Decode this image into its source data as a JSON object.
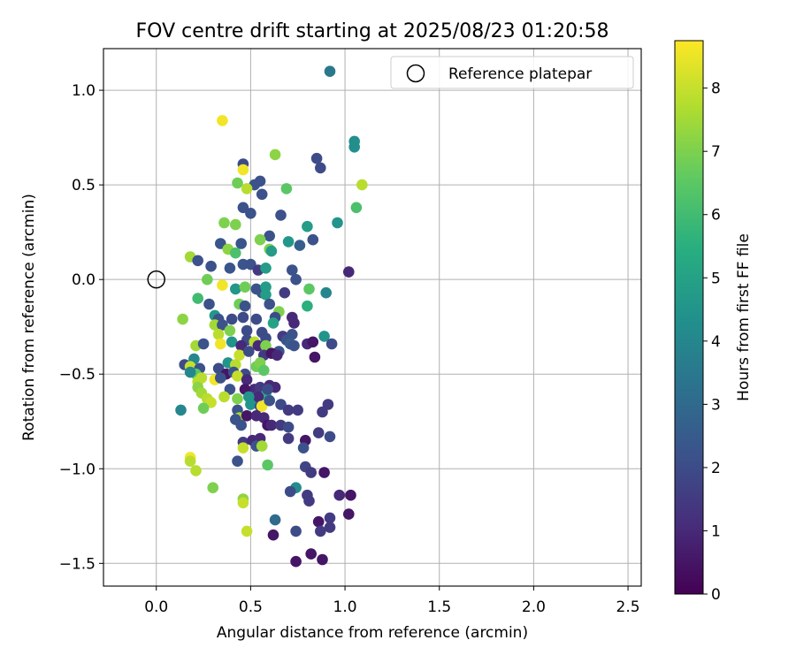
{
  "chart_data": {
    "type": "scatter",
    "title": "FOV centre drift starting at 2025/08/23 01:20:58",
    "xlabel": "Angular distance from reference (arcmin)",
    "ylabel": "Rotation from reference (arcmin)",
    "xlim": [
      -0.28,
      2.57
    ],
    "ylim": [
      -1.62,
      1.22
    ],
    "xticks": [
      0.0,
      0.5,
      1.0,
      1.5,
      2.0,
      2.5
    ],
    "xtick_labels": [
      "0.0",
      "0.5",
      "1.0",
      "1.5",
      "2.0",
      "2.5"
    ],
    "yticks": [
      -1.5,
      -1.0,
      -0.5,
      0.0,
      0.5,
      1.0
    ],
    "ytick_labels": [
      "−1.5",
      "−1.0",
      "−0.5",
      "0.0",
      "0.5",
      "1.0"
    ],
    "grid": true,
    "legend": {
      "placement": "top-right",
      "entries": [
        {
          "label": "Reference platepar",
          "marker": "open-circle"
        }
      ]
    },
    "reference_point": {
      "x": 0.0,
      "y": 0.0
    },
    "colorbar": {
      "label": "Hours from first FF file",
      "colormap": "viridis",
      "range": [
        0,
        8.75
      ],
      "ticks": [
        0,
        1,
        2,
        3,
        4,
        5,
        6,
        7,
        8
      ],
      "tick_labels": [
        "0",
        "1",
        "2",
        "3",
        "4",
        "5",
        "6",
        "7",
        "8"
      ]
    },
    "series": [
      {
        "points": [
          [
            0.92,
            1.1,
            3.5
          ],
          [
            0.35,
            0.84,
            8.6
          ],
          [
            0.46,
            0.61,
            2.0
          ],
          [
            0.85,
            0.64,
            2.0
          ],
          [
            0.87,
            0.59,
            2.0
          ],
          [
            0.63,
            0.66,
            7.2
          ],
          [
            1.05,
            0.73,
            4.3
          ],
          [
            1.05,
            0.7,
            4.3
          ],
          [
            0.46,
            0.58,
            8.6
          ],
          [
            0.55,
            0.52,
            2.2
          ],
          [
            0.52,
            0.5,
            2.2
          ],
          [
            0.43,
            0.51,
            6.8
          ],
          [
            0.48,
            0.48,
            7.8
          ],
          [
            0.69,
            0.48,
            6.5
          ],
          [
            1.09,
            0.5,
            7.8
          ],
          [
            0.56,
            0.45,
            2.2
          ],
          [
            1.06,
            0.38,
            6.2
          ],
          [
            0.46,
            0.38,
            2.2
          ],
          [
            0.5,
            0.35,
            2.2
          ],
          [
            0.66,
            0.34,
            2.2
          ],
          [
            0.36,
            0.3,
            7.0
          ],
          [
            0.42,
            0.29,
            7.0
          ],
          [
            0.8,
            0.28,
            4.8
          ],
          [
            0.96,
            0.3,
            4.5
          ],
          [
            0.6,
            0.23,
            2.2
          ],
          [
            0.55,
            0.21,
            7.0
          ],
          [
            0.45,
            0.19,
            2.3
          ],
          [
            0.34,
            0.19,
            2.3
          ],
          [
            0.7,
            0.2,
            4.6
          ],
          [
            0.76,
            0.18,
            2.6
          ],
          [
            0.83,
            0.21,
            2.2
          ],
          [
            0.6,
            0.16,
            7.0
          ],
          [
            0.61,
            0.15,
            4.8
          ],
          [
            0.38,
            0.16,
            7.2
          ],
          [
            0.42,
            0.14,
            6.2
          ],
          [
            0.18,
            0.12,
            7.5
          ],
          [
            0.22,
            0.1,
            2.2
          ],
          [
            0.29,
            0.07,
            2.2
          ],
          [
            0.39,
            0.06,
            2.3
          ],
          [
            0.46,
            0.08,
            2.3
          ],
          [
            0.5,
            0.08,
            2.2
          ],
          [
            0.54,
            0.05,
            1.5
          ],
          [
            0.58,
            0.06,
            4.8
          ],
          [
            0.72,
            0.05,
            2.2
          ],
          [
            0.74,
            0.0,
            2.2
          ],
          [
            1.02,
            0.04,
            1.0
          ],
          [
            0.27,
            0.0,
            6.8
          ],
          [
            0.35,
            -0.03,
            8.6
          ],
          [
            0.42,
            -0.05,
            4.6
          ],
          [
            0.47,
            -0.04,
            6.8
          ],
          [
            0.53,
            -0.05,
            2.2
          ],
          [
            0.56,
            -0.07,
            2.2
          ],
          [
            0.58,
            -0.04,
            4.8
          ],
          [
            0.58,
            -0.08,
            4.8
          ],
          [
            0.68,
            -0.07,
            1.5
          ],
          [
            0.81,
            -0.05,
            6.5
          ],
          [
            0.9,
            -0.07,
            4.0
          ],
          [
            0.22,
            -0.1,
            6.0
          ],
          [
            0.28,
            -0.13,
            2.2
          ],
          [
            0.44,
            -0.13,
            6.8
          ],
          [
            0.47,
            -0.14,
            2.2
          ],
          [
            0.6,
            -0.13,
            2.2
          ],
          [
            0.65,
            -0.17,
            7.0
          ],
          [
            0.8,
            -0.14,
            5.5
          ],
          [
            0.14,
            -0.21,
            7.2
          ],
          [
            0.31,
            -0.19,
            4.6
          ],
          [
            0.33,
            -0.21,
            2.2
          ],
          [
            0.4,
            -0.21,
            2.0
          ],
          [
            0.46,
            -0.2,
            2.0
          ],
          [
            0.53,
            -0.21,
            2.0
          ],
          [
            0.63,
            -0.2,
            2.0
          ],
          [
            0.62,
            -0.23,
            5.0
          ],
          [
            0.72,
            -0.2,
            1.0
          ],
          [
            0.31,
            -0.24,
            7.5
          ],
          [
            0.35,
            -0.24,
            2.2
          ],
          [
            0.39,
            -0.27,
            7.0
          ],
          [
            0.48,
            -0.27,
            2.0
          ],
          [
            0.56,
            -0.28,
            2.0
          ],
          [
            0.73,
            -0.23,
            1.0
          ],
          [
            0.33,
            -0.29,
            7.8
          ],
          [
            0.4,
            -0.33,
            4.5
          ],
          [
            0.48,
            -0.32,
            2.0
          ],
          [
            0.52,
            -0.33,
            7.8
          ],
          [
            0.58,
            -0.31,
            2.0
          ],
          [
            0.67,
            -0.3,
            1.5
          ],
          [
            0.69,
            -0.32,
            2.2
          ],
          [
            0.72,
            -0.29,
            2.2
          ],
          [
            0.89,
            -0.3,
            4.5
          ],
          [
            0.21,
            -0.35,
            7.5
          ],
          [
            0.25,
            -0.34,
            2.2
          ],
          [
            0.34,
            -0.34,
            8.6
          ],
          [
            0.45,
            -0.35,
            1.0
          ],
          [
            0.54,
            -0.35,
            1.0
          ],
          [
            0.58,
            -0.35,
            7.0
          ],
          [
            0.65,
            -0.38,
            2.2
          ],
          [
            0.71,
            -0.34,
            2.6
          ],
          [
            0.73,
            -0.35,
            2.2
          ],
          [
            0.8,
            -0.34,
            1.0
          ],
          [
            0.83,
            -0.33,
            0.5
          ],
          [
            0.93,
            -0.34,
            2.0
          ],
          [
            0.44,
            -0.4,
            8.0
          ],
          [
            0.49,
            -0.38,
            2.0
          ],
          [
            0.57,
            -0.4,
            1.5
          ],
          [
            0.61,
            -0.39,
            0.5
          ],
          [
            0.64,
            -0.4,
            1.0
          ],
          [
            0.84,
            -0.41,
            0.5
          ],
          [
            0.2,
            -0.42,
            4.0
          ],
          [
            0.15,
            -0.45,
            2.0
          ],
          [
            0.18,
            -0.46,
            8.0
          ],
          [
            0.23,
            -0.47,
            2.2
          ],
          [
            0.33,
            -0.47,
            2.0
          ],
          [
            0.38,
            -0.44,
            4.5
          ],
          [
            0.42,
            -0.45,
            7.8
          ],
          [
            0.53,
            -0.46,
            6.8
          ],
          [
            0.55,
            -0.44,
            7.0
          ],
          [
            0.37,
            -0.5,
            0.5
          ],
          [
            0.41,
            -0.49,
            2.2
          ],
          [
            0.47,
            -0.5,
            2.0
          ],
          [
            0.57,
            -0.48,
            6.5
          ],
          [
            0.21,
            -0.5,
            6.5
          ],
          [
            0.18,
            -0.49,
            4.0
          ],
          [
            0.24,
            -0.52,
            7.8
          ],
          [
            0.31,
            -0.53,
            8.6
          ],
          [
            0.34,
            -0.52,
            2.2
          ],
          [
            0.43,
            -0.51,
            8.0
          ],
          [
            0.48,
            -0.53,
            1.0
          ],
          [
            0.52,
            -0.58,
            1.0
          ],
          [
            0.55,
            -0.57,
            1.5
          ],
          [
            0.6,
            -0.56,
            1.0
          ],
          [
            0.63,
            -0.57,
            1.0
          ],
          [
            0.22,
            -0.54,
            7.8
          ],
          [
            0.22,
            -0.57,
            7.2
          ],
          [
            0.24,
            -0.6,
            7.5
          ],
          [
            0.27,
            -0.63,
            7.8
          ],
          [
            0.29,
            -0.65,
            8.0
          ],
          [
            0.39,
            -0.58,
            2.2
          ],
          [
            0.47,
            -0.58,
            0.5
          ],
          [
            0.53,
            -0.62,
            2.0
          ],
          [
            0.58,
            -0.61,
            5.5
          ],
          [
            0.59,
            -0.58,
            2.0
          ],
          [
            0.54,
            -0.62,
            1.0
          ],
          [
            0.49,
            -0.62,
            4.5
          ],
          [
            0.36,
            -0.62,
            7.8
          ],
          [
            0.43,
            -0.63,
            7.0
          ],
          [
            0.5,
            -0.66,
            4.5
          ],
          [
            0.55,
            -0.67,
            2.2
          ],
          [
            0.56,
            -0.67,
            8.6
          ],
          [
            0.6,
            -0.64,
            2.2
          ],
          [
            0.66,
            -0.66,
            2.0
          ],
          [
            0.7,
            -0.69,
            1.5
          ],
          [
            0.75,
            -0.69,
            1.5
          ],
          [
            0.88,
            -0.7,
            1.5
          ],
          [
            0.91,
            -0.66,
            1.5
          ],
          [
            0.13,
            -0.69,
            4.0
          ],
          [
            0.25,
            -0.68,
            6.8
          ],
          [
            0.43,
            -0.69,
            2.2
          ],
          [
            0.44,
            -0.73,
            7.5
          ],
          [
            0.48,
            -0.72,
            0.5
          ],
          [
            0.53,
            -0.72,
            1.0
          ],
          [
            0.57,
            -0.73,
            1.0
          ],
          [
            0.42,
            -0.74,
            2.2
          ],
          [
            0.45,
            -0.77,
            2.2
          ],
          [
            0.59,
            -0.77,
            0.5
          ],
          [
            0.61,
            -0.77,
            1.0
          ],
          [
            0.66,
            -0.77,
            1.5
          ],
          [
            0.7,
            -0.78,
            2.0
          ],
          [
            0.7,
            -0.84,
            1.5
          ],
          [
            0.79,
            -0.85,
            0.5
          ],
          [
            0.86,
            -0.81,
            1.5
          ],
          [
            0.92,
            -0.83,
            2.0
          ],
          [
            0.46,
            -0.86,
            1.5
          ],
          [
            0.51,
            -0.85,
            1.0
          ],
          [
            0.55,
            -0.84,
            1.0
          ],
          [
            0.46,
            -0.89,
            8.0
          ],
          [
            0.53,
            -0.88,
            2.2
          ],
          [
            0.56,
            -0.88,
            7.5
          ],
          [
            0.78,
            -0.89,
            2.2
          ],
          [
            0.18,
            -0.94,
            8.6
          ],
          [
            0.18,
            -0.96,
            7.8
          ],
          [
            0.43,
            -0.96,
            2.2
          ],
          [
            0.59,
            -0.98,
            6.5
          ],
          [
            0.79,
            -0.99,
            1.8
          ],
          [
            0.82,
            -1.02,
            1.5
          ],
          [
            0.89,
            -1.02,
            0.5
          ],
          [
            0.21,
            -1.01,
            7.8
          ],
          [
            0.3,
            -1.1,
            7.0
          ],
          [
            0.74,
            -1.1,
            4.2
          ],
          [
            0.71,
            -1.12,
            2.0
          ],
          [
            0.8,
            -1.14,
            1.5
          ],
          [
            0.81,
            -1.17,
            1.5
          ],
          [
            0.97,
            -1.14,
            1.0
          ],
          [
            1.03,
            -1.14,
            0.5
          ],
          [
            0.46,
            -1.16,
            7.2
          ],
          [
            0.46,
            -1.18,
            8.0
          ],
          [
            0.63,
            -1.27,
            3.0
          ],
          [
            0.86,
            -1.28,
            0.5
          ],
          [
            0.92,
            -1.26,
            1.5
          ],
          [
            1.02,
            -1.24,
            0.5
          ],
          [
            0.48,
            -1.33,
            8.0
          ],
          [
            0.62,
            -1.35,
            0.5
          ],
          [
            0.74,
            -1.33,
            2.0
          ],
          [
            0.87,
            -1.33,
            1.5
          ],
          [
            0.92,
            -1.31,
            1.5
          ],
          [
            0.74,
            -1.49,
            0.5
          ],
          [
            0.82,
            -1.45,
            0.5
          ],
          [
            0.88,
            -1.48,
            0.5
          ]
        ]
      }
    ]
  }
}
